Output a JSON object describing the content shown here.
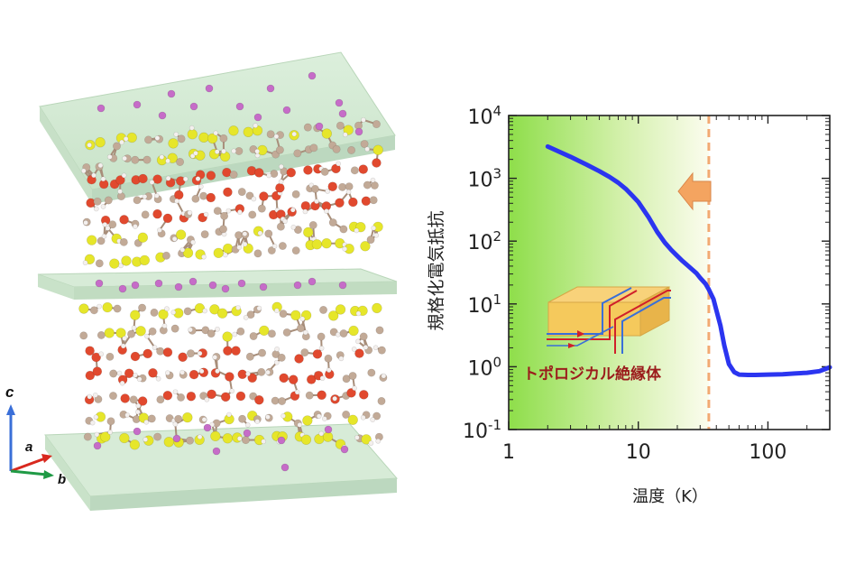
{
  "structure": {
    "axes": {
      "c": "c",
      "a": "a",
      "b": "b"
    },
    "colors": {
      "slab": "#cfe6cf",
      "carbon": "#c2aa97",
      "oxygen": "#e1492e",
      "sulfur": "#e6e62a",
      "metal": "#c66cc8",
      "hydrogen": "#f4f0ee"
    }
  },
  "chart_data": {
    "type": "line",
    "xlabel": "温度（K）",
    "ylabel": "規格化電気抵抗",
    "xscale": "log",
    "yscale": "log",
    "xlim": [
      1,
      300
    ],
    "ylim": [
      0.1,
      10000
    ],
    "xticks": [
      {
        "value": 1,
        "label": "1"
      },
      {
        "value": 10,
        "label": "10"
      },
      {
        "value": 100,
        "label": "100"
      }
    ],
    "yticks": [
      {
        "value": 0.1,
        "base": "10",
        "exp": "-1"
      },
      {
        "value": 1,
        "base": "10",
        "exp": "0"
      },
      {
        "value": 10,
        "base": "10",
        "exp": "1"
      },
      {
        "value": 100,
        "base": "10",
        "exp": "2"
      },
      {
        "value": 1000,
        "base": "10",
        "exp": "3"
      },
      {
        "value": 10000,
        "base": "10",
        "exp": "4"
      }
    ],
    "series": [
      {
        "color": "#2b35f0",
        "x": [
          2,
          3,
          4,
          5,
          6,
          7,
          8,
          9,
          10,
          12,
          14,
          16,
          18,
          20,
          22,
          25,
          28,
          30,
          33,
          35,
          38,
          40,
          43,
          46,
          50,
          55,
          60,
          70,
          80,
          100,
          130,
          160,
          200,
          250,
          300
        ],
        "y": [
          3200,
          2200,
          1650,
          1300,
          1050,
          850,
          680,
          530,
          420,
          240,
          140,
          95,
          72,
          58,
          48,
          38,
          31,
          26,
          21,
          17,
          12,
          8,
          4.5,
          2.2,
          1.1,
          0.82,
          0.75,
          0.74,
          0.74,
          0.75,
          0.76,
          0.78,
          0.8,
          0.85,
          0.98
        ]
      }
    ],
    "transition_line_x": 35,
    "shaded_region": {
      "from": 1,
      "to": 35,
      "color": "#9be05a"
    },
    "annotation": "トポロジカル絶縁体",
    "arrow_color": "#f4a460",
    "grid": false
  }
}
